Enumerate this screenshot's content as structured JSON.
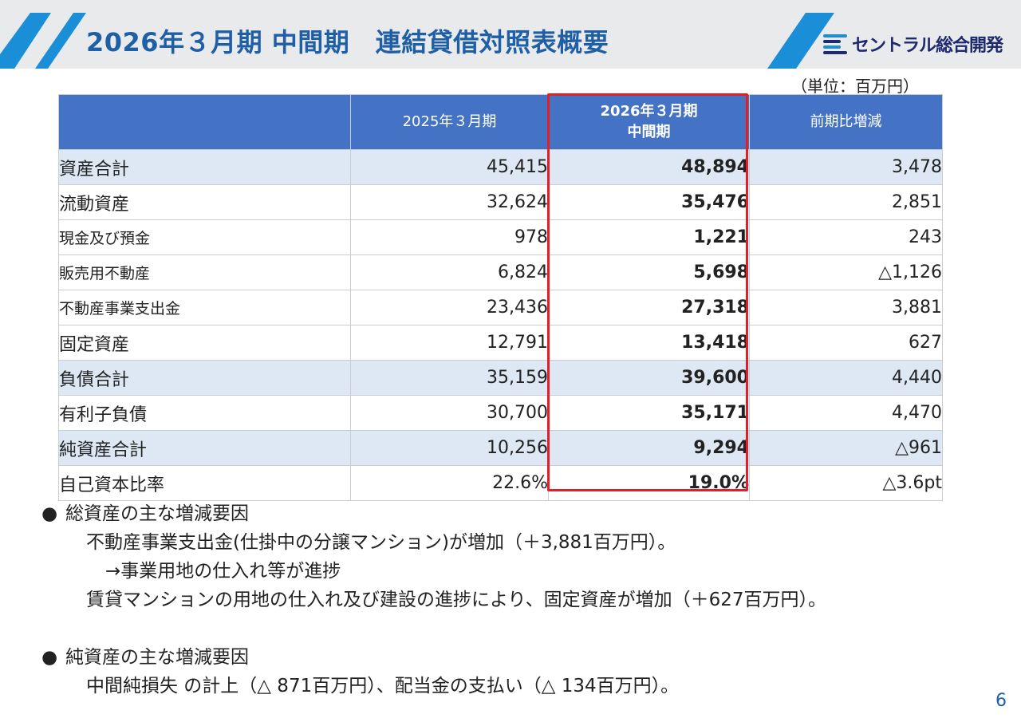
{
  "header": {
    "title": "2026年３月期 中間期　連結貸借対照表概要",
    "logo_text": "セントラル総合開発",
    "accent_color": "#1a8fd8",
    "title_color": "#1f5fa6"
  },
  "unit": "（単位：百万円）",
  "table": {
    "columns": [
      "",
      "2025年３月期",
      "2026年３月期\n中間期",
      "前期比増減"
    ],
    "rows": [
      {
        "label": "資産合計",
        "prev": "45,415",
        "curr": "48,894",
        "diff": "3,478"
      },
      {
        "label": "流動資産",
        "prev": "32,624",
        "curr": "35,476",
        "diff": "2,851"
      },
      {
        "label": "現金及び預金",
        "prev": "978",
        "curr": "1,221",
        "diff": "243"
      },
      {
        "label": "販売用不動産",
        "prev": "6,824",
        "curr": "5,698",
        "diff": "△1,126"
      },
      {
        "label": "不動産事業支出金",
        "prev": "23,436",
        "curr": "27,318",
        "diff": "3,881"
      },
      {
        "label": "固定資産",
        "prev": "12,791",
        "curr": "13,418",
        "diff": "627"
      },
      {
        "label": "負債合計",
        "prev": "35,159",
        "curr": "39,600",
        "diff": "4,440"
      },
      {
        "label": "有利子負債",
        "prev": "30,700",
        "curr": "35,171",
        "diff": "4,470"
      },
      {
        "label": "純資産合計",
        "prev": "10,256",
        "curr": "9,294",
        "diff": "△961"
      },
      {
        "label": "自己資本比率",
        "prev": "22.6%",
        "curr": "19.0%",
        "diff": "△3.6pt"
      }
    ]
  },
  "notes": {
    "section1_bullet": "●",
    "section1_title": "総資産の主な増減要因",
    "section1_line1": "不動産事業支出金(仕掛中の分譲マンション)が増加（＋3,881百万円）。",
    "section1_line2": "→事業用地の仕入れ等が進捗",
    "section1_line3": "賃貸マンションの用地の仕入れ及び建設の進捗により、固定資産が増加（＋627百万円）。",
    "section2_bullet": "●",
    "section2_title": "純資産の主な増減要因",
    "section2_line1": "中間純損失 の計上（△ 871百万円）、配当金の支払い（△ 134百万円）。"
  },
  "page_number": "6"
}
